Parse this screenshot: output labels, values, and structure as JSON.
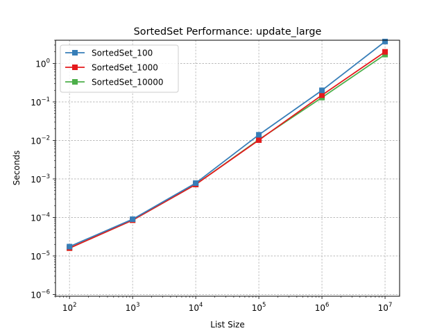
{
  "chart_data": {
    "type": "line",
    "title": "SortedSet Performance: update_large",
    "xlabel": "List Size",
    "ylabel": "Seconds",
    "x_scale": "log",
    "y_scale": "log",
    "x": [
      100,
      1000,
      10000,
      100000,
      1000000,
      10000000
    ],
    "xlim": [
      60,
      17000000
    ],
    "ylim": [
      9e-07,
      4
    ],
    "x_ticks": [
      {
        "value": 100,
        "base": "10",
        "exp": "2"
      },
      {
        "value": 1000,
        "base": "10",
        "exp": "3"
      },
      {
        "value": 10000,
        "base": "10",
        "exp": "4"
      },
      {
        "value": 100000,
        "base": "10",
        "exp": "5"
      },
      {
        "value": 1000000,
        "base": "10",
        "exp": "6"
      },
      {
        "value": 10000000,
        "base": "10",
        "exp": "7"
      }
    ],
    "y_ticks": [
      {
        "value": 1e-06,
        "base": "10",
        "exp": "−6"
      },
      {
        "value": 1e-05,
        "base": "10",
        "exp": "−5"
      },
      {
        "value": 0.0001,
        "base": "10",
        "exp": "−4"
      },
      {
        "value": 0.001,
        "base": "10",
        "exp": "−3"
      },
      {
        "value": 0.01,
        "base": "10",
        "exp": "−2"
      },
      {
        "value": 0.1,
        "base": "10",
        "exp": "−1"
      },
      {
        "value": 1,
        "base": "10",
        "exp": "0"
      }
    ],
    "grid": true,
    "legend_position": "top-left",
    "series": [
      {
        "name": "SortedSet_10000",
        "color": "#4daf4a",
        "marker": "square",
        "values": [
          1.6e-05,
          8.5e-05,
          0.00072,
          0.0105,
          0.13,
          1.7
        ]
      },
      {
        "name": "SortedSet_1000",
        "color": "#e41a1c",
        "marker": "square",
        "values": [
          1.6e-05,
          8.5e-05,
          0.00072,
          0.0102,
          0.15,
          2.0
        ]
      },
      {
        "name": "SortedSet_100",
        "color": "#377eb8",
        "marker": "square",
        "values": [
          1.75e-05,
          9e-05,
          0.00078,
          0.014,
          0.2,
          3.7
        ]
      }
    ],
    "legend_order": [
      "SortedSet_100",
      "SortedSet_1000",
      "SortedSet_10000"
    ]
  }
}
